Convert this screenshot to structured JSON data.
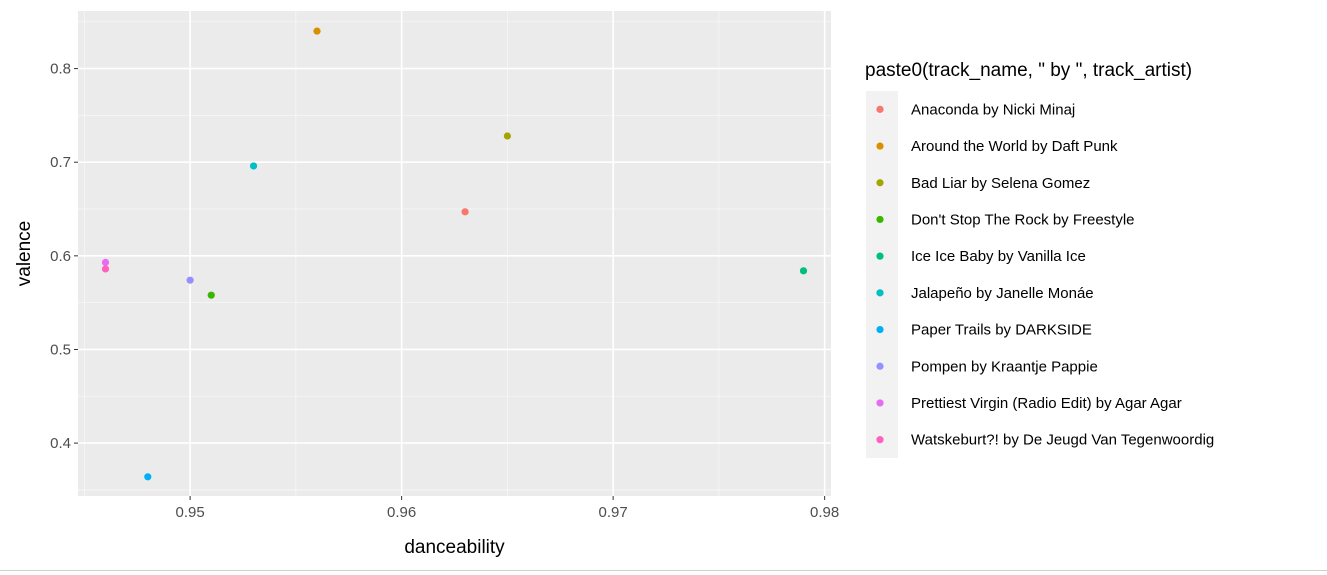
{
  "chart_data": {
    "type": "scatter",
    "xlabel": "danceability",
    "ylabel": "valence",
    "xlim": [
      0.9447,
      0.9803
    ],
    "ylim": [
      0.3435,
      0.8615
    ],
    "x_ticks": [
      0.95,
      0.96,
      0.97,
      0.98
    ],
    "x_tick_labels": [
      "0.95",
      "0.96",
      "0.97",
      "0.98"
    ],
    "y_ticks": [
      0.4,
      0.5,
      0.6,
      0.7,
      0.8
    ],
    "y_tick_labels": [
      "0.4",
      "0.5",
      "0.6",
      "0.7",
      "0.8"
    ],
    "grid": true,
    "legend_title": "paste0(track_name, \" by \", track_artist)",
    "legend_position": "right",
    "series": [
      {
        "name": "Anaconda by Nicki Minaj",
        "color": "#F8766D",
        "points": [
          {
            "x": 0.963,
            "y": 0.647
          }
        ]
      },
      {
        "name": "Around the World by Daft Punk",
        "color": "#D89000",
        "points": [
          {
            "x": 0.956,
            "y": 0.84
          }
        ]
      },
      {
        "name": "Bad Liar by Selena Gomez",
        "color": "#A3A500",
        "points": [
          {
            "x": 0.965,
            "y": 0.728
          }
        ]
      },
      {
        "name": "Don't Stop The Rock by Freestyle",
        "color": "#39B600",
        "points": [
          {
            "x": 0.951,
            "y": 0.558
          }
        ]
      },
      {
        "name": "Ice Ice Baby by Vanilla Ice",
        "color": "#00BF7D",
        "points": [
          {
            "x": 0.979,
            "y": 0.584
          }
        ]
      },
      {
        "name": "Jalapeño by Janelle Monáe",
        "color": "#00BFC4",
        "points": [
          {
            "x": 0.953,
            "y": 0.696
          }
        ]
      },
      {
        "name": "Paper Trails by DARKSIDE",
        "color": "#00B0F6",
        "points": [
          {
            "x": 0.948,
            "y": 0.364
          }
        ]
      },
      {
        "name": "Pompen by Kraantje Pappie",
        "color": "#9590FF",
        "points": [
          {
            "x": 0.95,
            "y": 0.574
          }
        ]
      },
      {
        "name": "Prettiest Virgin (Radio Edit) by Agar Agar",
        "color": "#E76BF3",
        "points": [
          {
            "x": 0.946,
            "y": 0.593
          }
        ]
      },
      {
        "name": "Watskeburt?! by De Jeugd Van Tegenwoordig",
        "color": "#FF62BC",
        "points": [
          {
            "x": 0.946,
            "y": 0.586
          }
        ]
      }
    ]
  }
}
